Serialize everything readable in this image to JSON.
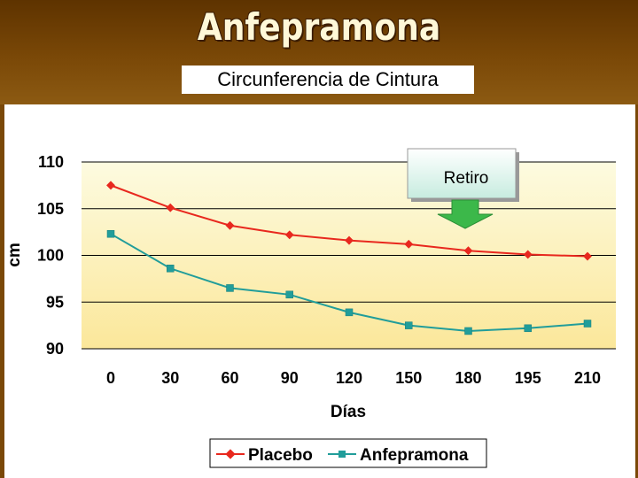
{
  "header": {
    "title": "Anfepramona",
    "subtitle": "Circunferencia de Cintura"
  },
  "colors": {
    "header_bg": "#7a4807",
    "plot_bg_top": "#fdfbe0",
    "plot_bg_bottom": "#fbe79a",
    "placebo": "#e8281e",
    "anfepramona": "#219d9a",
    "callout_box_top": "#ffffff",
    "callout_box_bottom": "#c7ecdf",
    "callout_arrow": "#3cb84a"
  },
  "callout": {
    "label": "Retiro"
  },
  "chart_data": {
    "type": "line",
    "categories": [
      "0",
      "30",
      "60",
      "90",
      "120",
      "150",
      "180",
      "195",
      "210"
    ],
    "series": [
      {
        "name": "Placebo",
        "marker": "diamond",
        "values": [
          107.5,
          105.1,
          103.2,
          102.2,
          101.6,
          101.2,
          100.5,
          100.1,
          99.9
        ]
      },
      {
        "name": "Anfepramona",
        "marker": "square",
        "values": [
          102.3,
          98.6,
          96.5,
          95.8,
          93.9,
          92.5,
          91.9,
          92.2,
          92.7
        ]
      }
    ],
    "title": "",
    "xlabel": "Días",
    "ylabel": "cm",
    "ylim": [
      90,
      110
    ],
    "yticks": [
      "90",
      "95",
      "100",
      "105",
      "110"
    ],
    "grid": "horizontal",
    "legend": "bottom"
  }
}
